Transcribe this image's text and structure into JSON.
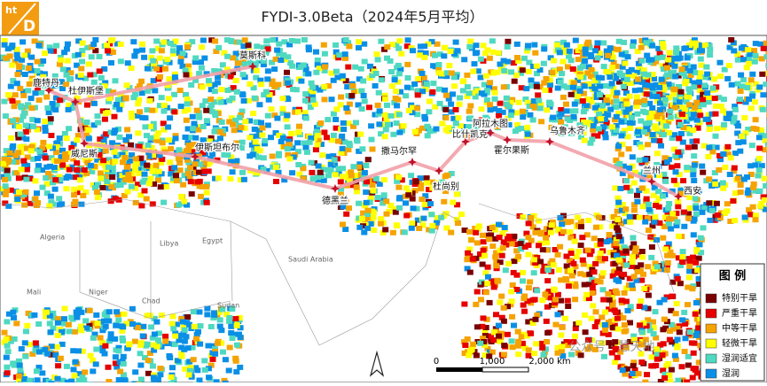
{
  "header": {
    "title": "FYDI-3.0Beta（2024年5月平均）",
    "logo": {
      "top": "ht",
      "bottom": "D"
    }
  },
  "cities": [
    "鹿特丹",
    "杜伊斯堡",
    "莫斯科",
    "威尼斯",
    "伊斯坦布尔",
    "德黑兰",
    "撒马尔罕",
    "杜尚别",
    "比什凯克",
    "阿拉木图",
    "霍尔果斯",
    "乌鲁木齐",
    "兰州",
    "西安"
  ],
  "map_labels": [
    "Algeria",
    "Libya",
    "Egypt",
    "Saudi Arabia",
    "Mali",
    "Niger",
    "Chad",
    "Sudan"
  ],
  "legend": {
    "title": "图 例",
    "items": [
      {
        "label": "特别干旱",
        "color": "#7a0000"
      },
      {
        "label": "严重干旱",
        "color": "#e60000"
      },
      {
        "label": "中等干旱",
        "color": "#f5a300"
      },
      {
        "label": "轻微干旱",
        "color": "#ffff00"
      },
      {
        "label": "湿润适宜",
        "color": "#4ed9c0"
      },
      {
        "label": "湿润",
        "color": "#0a8fe6"
      }
    ]
  },
  "scale": [
    "0",
    "1,000",
    "2,000 km"
  ],
  "watermark": "公众号 · 慧天地"
}
